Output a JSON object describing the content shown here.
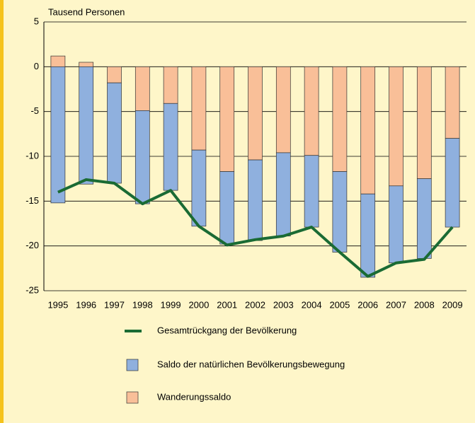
{
  "chart_data": {
    "type": "bar",
    "axis_label": "Tausend Personen",
    "categories": [
      "1995",
      "1996",
      "1997",
      "1998",
      "1999",
      "2000",
      "2001",
      "2002",
      "2003",
      "2004",
      "2005",
      "2006",
      "2007",
      "2008",
      "2009"
    ],
    "series": [
      {
        "name": "Gesamtrückgang der Bevölkerung",
        "kind": "line",
        "color": "#1a6b34",
        "values": [
          -14.0,
          -12.6,
          -13.0,
          -15.3,
          -13.8,
          -17.8,
          -19.9,
          -19.3,
          -18.9,
          -17.9,
          -20.7,
          -23.4,
          -21.9,
          -21.5,
          -17.9
        ]
      },
      {
        "name": "Saldo der natürlichen Bevölkerungsbewegung",
        "kind": "bar",
        "color": "#8fb0de",
        "values": [
          -15.2,
          -13.1,
          -11.2,
          -10.4,
          -9.7,
          -8.5,
          -8.1,
          -9.0,
          -9.3,
          -8.0,
          -9.0,
          -9.3,
          -8.6,
          -8.9,
          -9.9
        ]
      },
      {
        "name": "Wanderungssaldo",
        "kind": "bar",
        "color": "#f9bf98",
        "values": [
          1.2,
          0.5,
          -1.8,
          -4.9,
          -4.1,
          -9.3,
          -11.7,
          -10.4,
          -9.6,
          -9.9,
          -11.7,
          -14.2,
          -13.3,
          -12.5,
          -8.0
        ]
      }
    ],
    "ylim": [
      -25,
      5
    ],
    "yticks": [
      5,
      0,
      -5,
      -10,
      -15,
      -20,
      -25
    ],
    "grid": true
  }
}
